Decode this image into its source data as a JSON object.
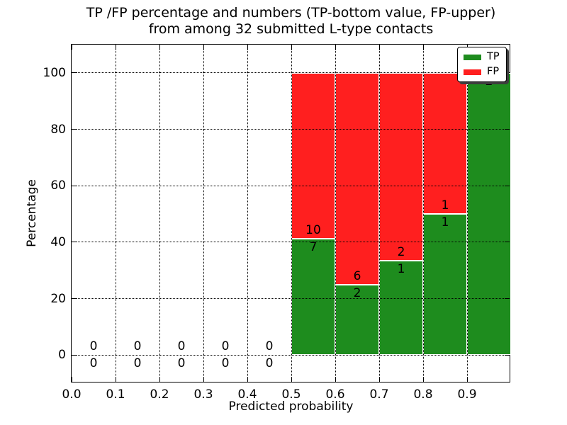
{
  "figure": {
    "title_line1": "TP /FP percentage and numbers (TP-bottom value, FP-upper)",
    "title_line2": "from among 32 submitted L-type contacts"
  },
  "chart_data": {
    "type": "bar",
    "stacked": true,
    "title": "TP /FP percentage and numbers (TP-bottom value, FP-upper) from among 32 submitted L-type contacts",
    "xlabel": "Predicted probability",
    "ylabel": "Percentage",
    "total_contacts": 32,
    "xlim": [
      0.0,
      1.0
    ],
    "ylim": [
      -10,
      110
    ],
    "xtick_values": [
      0.0,
      0.1,
      0.2,
      0.3,
      0.4,
      0.5,
      0.6,
      0.7,
      0.8,
      0.9
    ],
    "xtick_labels": [
      "0.0",
      "0.1",
      "0.2",
      "0.3",
      "0.4",
      "0.5",
      "0.6",
      "0.7",
      "0.8",
      "0.9"
    ],
    "ytick_values": [
      0,
      20,
      40,
      60,
      80,
      100
    ],
    "ytick_labels": [
      "0",
      "20",
      "40",
      "60",
      "80",
      "100"
    ],
    "grid": {
      "style": "dotted",
      "drawn_above_bars": true
    },
    "legend": {
      "position": "upper-right",
      "entries": [
        {
          "label": "TP",
          "color": "#1e8c1e"
        },
        {
          "label": "FP",
          "color": "#ff1f1f"
        }
      ]
    },
    "bins": [
      {
        "x_start": 0.0,
        "x_end": 0.1,
        "tp_count": 0,
        "fp_count": 0,
        "tp_pct": 0,
        "fp_pct": 0
      },
      {
        "x_start": 0.1,
        "x_end": 0.2,
        "tp_count": 0,
        "fp_count": 0,
        "tp_pct": 0,
        "fp_pct": 0
      },
      {
        "x_start": 0.2,
        "x_end": 0.3,
        "tp_count": 0,
        "fp_count": 0,
        "tp_pct": 0,
        "fp_pct": 0
      },
      {
        "x_start": 0.3,
        "x_end": 0.4,
        "tp_count": 0,
        "fp_count": 0,
        "tp_pct": 0,
        "fp_pct": 0
      },
      {
        "x_start": 0.4,
        "x_end": 0.5,
        "tp_count": 0,
        "fp_count": 0,
        "tp_pct": 0,
        "fp_pct": 0
      },
      {
        "x_start": 0.5,
        "x_end": 0.6,
        "tp_count": 7,
        "fp_count": 10,
        "tp_pct": 41.18,
        "fp_pct": 58.82
      },
      {
        "x_start": 0.6,
        "x_end": 0.7,
        "tp_count": 2,
        "fp_count": 6,
        "tp_pct": 25,
        "fp_pct": 75
      },
      {
        "x_start": 0.7,
        "x_end": 0.8,
        "tp_count": 1,
        "fp_count": 2,
        "tp_pct": 33.33,
        "fp_pct": 66.67
      },
      {
        "x_start": 0.8,
        "x_end": 0.9,
        "tp_count": 1,
        "fp_count": 1,
        "tp_pct": 50,
        "fp_pct": 50
      },
      {
        "x_start": 0.9,
        "x_end": 1.0,
        "tp_count": 2,
        "fp_count": 0,
        "tp_pct": 100,
        "fp_pct": 0
      }
    ],
    "colors": {
      "tp": "#1e8c1e",
      "fp": "#ff1f1f",
      "grid": "#000000",
      "text": "#000000",
      "background": "#ffffff"
    }
  }
}
